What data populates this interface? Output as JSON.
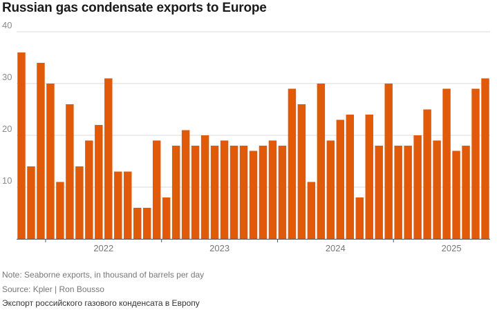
{
  "chart_data": {
    "type": "bar",
    "title": "Russian gas condensate exports to Europe",
    "xlabel": "",
    "ylabel": "",
    "ylim": [
      0,
      40
    ],
    "yticks": [
      10,
      20,
      30,
      40
    ],
    "grid": true,
    "bar_color": "#e05a0a",
    "x_tick_labels": [
      "2022",
      "2023",
      "2024",
      "2025"
    ],
    "categories": [
      "2021-10",
      "2021-11",
      "2021-12",
      "2022-01",
      "2022-02",
      "2022-03",
      "2022-04",
      "2022-05",
      "2022-06",
      "2022-07",
      "2022-08",
      "2022-09",
      "2022-10",
      "2022-11",
      "2022-12",
      "2023-01",
      "2023-02",
      "2023-03",
      "2023-04",
      "2023-05",
      "2023-06",
      "2023-07",
      "2023-08",
      "2023-09",
      "2023-10",
      "2023-11",
      "2023-12",
      "2024-01",
      "2024-02",
      "2024-03",
      "2024-04",
      "2024-05",
      "2024-06",
      "2024-07",
      "2024-08",
      "2024-09",
      "2024-10",
      "2024-11",
      "2024-12",
      "2025-01",
      "2025-02",
      "2025-03",
      "2025-04",
      "2025-05",
      "2025-06",
      "2025-07",
      "2025-08",
      "2025-09",
      "2025-10"
    ],
    "values": [
      36,
      14,
      34,
      30,
      11,
      26,
      14,
      19,
      22,
      31,
      13,
      13,
      6,
      6,
      19,
      8,
      18,
      21,
      18,
      20,
      18,
      19,
      18,
      18,
      17,
      18,
      19,
      18,
      29,
      26,
      11,
      30,
      19,
      23,
      24,
      8,
      24,
      18,
      30,
      18,
      18,
      20,
      25,
      19,
      29,
      17,
      18,
      29,
      31
    ]
  },
  "footer": {
    "note": "Note: Seaborne exports, in thousand of barrels per day",
    "source": "Source: Kpler | Ron Bousso",
    "caption": "Экспорт российского газового конденсата в Европу"
  }
}
